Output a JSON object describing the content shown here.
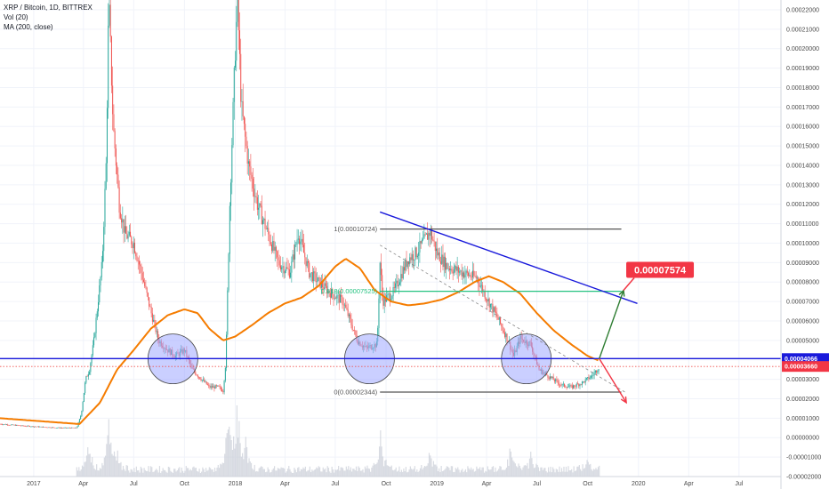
{
  "header": {
    "symbol_line": "XRP / Bitcoin, 1D, BITTREX",
    "indicator_1": "Vol (20)",
    "indicator_2": "MA (200, close)"
  },
  "colors": {
    "up": "#26a69a",
    "down": "#ef5350",
    "ma": "#f57c00",
    "trend_blue": "#1a1adb",
    "fib_grey": "#555555",
    "fib_green": "#26c281",
    "target_red": "#f23645",
    "arrow_green": "#2e7d32",
    "circle_fill": "#9fa8ff"
  },
  "chart_data": {
    "type": "candlestick",
    "title": "XRP / Bitcoin, 1D, BITTREX",
    "ylim": [
      -2e-05,
      0.000225
    ],
    "y_ticks": [
      "0.00022000",
      "0.00021000",
      "0.00020000",
      "0.00019000",
      "0.00018000",
      "0.00017000",
      "0.00016000",
      "0.00015000",
      "0.00014000",
      "0.00013000",
      "0.00012000",
      "0.00011000",
      "0.00010000",
      "0.00009000",
      "0.00008000",
      "0.00007000",
      "0.00006000",
      "0.00005000",
      "0.00004000",
      "0.00003000",
      "0.00002000",
      "0.00001000",
      "0.00000000",
      "-0.00001000",
      "-0.00002000"
    ],
    "x_ticks": [
      "2017",
      "Apr",
      "Jul",
      "Oct",
      "2018",
      "Apr",
      "Jul",
      "Oct",
      "2019",
      "Apr",
      "Jul",
      "Oct",
      "2020",
      "Apr",
      "Jul"
    ],
    "price_path": [
      [
        "2016-11-01",
        7e-06
      ],
      [
        "2016-12-15",
        6e-06
      ],
      [
        "2017-01-15",
        5.5e-06
      ],
      [
        "2017-02-20",
        5e-06
      ],
      [
        "2017-03-20",
        5e-06
      ],
      [
        "2017-03-28",
        1.2e-05
      ],
      [
        "2017-04-05",
        3e-05
      ],
      [
        "2017-04-12",
        3.5e-05
      ],
      [
        "2017-04-20",
        5e-05
      ],
      [
        "2017-05-05",
        9e-05
      ],
      [
        "2017-05-12",
        0.00014
      ],
      [
        "2017-05-17",
        0.000225
      ],
      [
        "2017-05-25",
        0.00016
      ],
      [
        "2017-06-05",
        0.00012
      ],
      [
        "2017-06-15",
        0.000105
      ],
      [
        "2017-07-01",
        0.0001
      ],
      [
        "2017-07-15",
        8.5e-05
      ],
      [
        "2017-08-01",
        6.5e-05
      ],
      [
        "2017-08-15",
        5e-05
      ],
      [
        "2017-09-01",
        4.5e-05
      ],
      [
        "2017-09-15",
        4.2e-05
      ],
      [
        "2017-10-01",
        4.5e-05
      ],
      [
        "2017-10-15",
        3.5e-05
      ],
      [
        "2017-11-01",
        3e-05
      ],
      [
        "2017-11-15",
        2.6e-05
      ],
      [
        "2017-12-01",
        2.6e-05
      ],
      [
        "2017-12-10",
        2.4e-05
      ],
      [
        "2017-12-15",
        4e-05
      ],
      [
        "2017-12-22",
        0.00012
      ],
      [
        "2018-01-01",
        0.0002
      ],
      [
        "2018-01-05",
        0.000225
      ],
      [
        "2018-01-12",
        0.00017
      ],
      [
        "2018-01-25",
        0.00014
      ],
      [
        "2018-02-10",
        0.00012
      ],
      [
        "2018-03-01",
        0.000105
      ],
      [
        "2018-03-20",
        9e-05
      ],
      [
        "2018-04-10",
        8.5e-05
      ],
      [
        "2018-04-25",
        0.000105
      ],
      [
        "2018-05-15",
        8.5e-05
      ],
      [
        "2018-06-01",
        8e-05
      ],
      [
        "2018-06-20",
        7.5e-05
      ],
      [
        "2018-07-15",
        7e-05
      ],
      [
        "2018-08-10",
        5e-05
      ],
      [
        "2018-08-25",
        4.6e-05
      ],
      [
        "2018-09-15",
        4.8e-05
      ],
      [
        "2018-09-20",
        9e-05
      ],
      [
        "2018-09-25",
        7e-05
      ],
      [
        "2018-10-15",
        7.5e-05
      ],
      [
        "2018-11-10",
        9.2e-05
      ],
      [
        "2018-11-25",
        9.5e-05
      ],
      [
        "2018-12-20",
        0.000106
      ],
      [
        "2019-01-01",
        9.5e-05
      ],
      [
        "2019-01-20",
        8.8e-05
      ],
      [
        "2019-02-15",
        8.5e-05
      ],
      [
        "2019-03-15",
        8.2e-05
      ],
      [
        "2019-04-01",
        7.2e-05
      ],
      [
        "2019-04-20",
        6.2e-05
      ],
      [
        "2019-05-10",
        5e-05
      ],
      [
        "2019-05-20",
        4.2e-05
      ],
      [
        "2019-06-01",
        5.1e-05
      ],
      [
        "2019-06-20",
        4.8e-05
      ],
      [
        "2019-07-05",
        3.5e-05
      ],
      [
        "2019-07-25",
        3.1e-05
      ],
      [
        "2019-08-15",
        2.7e-05
      ],
      [
        "2019-09-01",
        2.6e-05
      ],
      [
        "2019-09-20",
        2.8e-05
      ],
      [
        "2019-10-10",
        3.2e-05
      ],
      [
        "2019-10-22",
        3.66e-05
      ]
    ],
    "ma200_path": [
      [
        "2016-11-01",
        1e-05
      ],
      [
        "2017-03-25",
        7e-06
      ],
      [
        "2017-05-01",
        1.8e-05
      ],
      [
        "2017-06-01",
        3.5e-05
      ],
      [
        "2017-07-01",
        4.5e-05
      ],
      [
        "2017-08-01",
        5.6e-05
      ],
      [
        "2017-09-01",
        6.3e-05
      ],
      [
        "2017-10-01",
        6.6e-05
      ],
      [
        "2017-10-25",
        6.4e-05
      ],
      [
        "2017-11-15",
        5.6e-05
      ],
      [
        "2017-12-10",
        5e-05
      ],
      [
        "2018-01-01",
        5.2e-05
      ],
      [
        "2018-02-01",
        5.8e-05
      ],
      [
        "2018-03-01",
        6.4e-05
      ],
      [
        "2018-04-01",
        6.9e-05
      ],
      [
        "2018-05-01",
        7.2e-05
      ],
      [
        "2018-06-01",
        7.8e-05
      ],
      [
        "2018-07-01",
        8.8e-05
      ],
      [
        "2018-07-20",
        9.2e-05
      ],
      [
        "2018-08-15",
        8.7e-05
      ],
      [
        "2018-09-10",
        7.6e-05
      ],
      [
        "2018-10-10",
        7e-05
      ],
      [
        "2018-11-10",
        6.8e-05
      ],
      [
        "2018-12-10",
        6.9e-05
      ],
      [
        "2019-01-10",
        7.1e-05
      ],
      [
        "2019-02-10",
        7.5e-05
      ],
      [
        "2019-03-10",
        8e-05
      ],
      [
        "2019-04-05",
        8.3e-05
      ],
      [
        "2019-05-01",
        8e-05
      ],
      [
        "2019-06-01",
        7.4e-05
      ],
      [
        "2019-07-01",
        6.4e-05
      ],
      [
        "2019-08-01",
        5.5e-05
      ],
      [
        "2019-09-01",
        4.8e-05
      ],
      [
        "2019-10-01",
        4.2e-05
      ],
      [
        "2019-10-22",
        3.95e-05
      ]
    ],
    "volume_peaks": [
      [
        "2017-04-10",
        6
      ],
      [
        "2017-05-17",
        10
      ],
      [
        "2017-06-01",
        5
      ],
      [
        "2017-12-20",
        12
      ],
      [
        "2018-01-05",
        14
      ],
      [
        "2018-01-20",
        6
      ],
      [
        "2018-09-21",
        8
      ],
      [
        "2018-12-20",
        4
      ],
      [
        "2019-05-15",
        5
      ],
      [
        "2019-06-20",
        4
      ],
      [
        "2019-10-01",
        3
      ]
    ],
    "annotations": {
      "fib_1": {
        "label": "1(0.00010724)",
        "value": 0.00010724
      },
      "fib_0618": {
        "label": "0.618(0.00007525)",
        "value": 7.525e-05
      },
      "fib_0": {
        "label": "0(0.00002344)",
        "value": 2.344e-05
      },
      "target": {
        "label": "0.00007574",
        "value": 7.574e-05
      },
      "support_level": {
        "label": "0.00004066",
        "value": 4.066e-05
      },
      "last_price": {
        "label": "0.00003660",
        "value": 3.66e-05
      },
      "downtrend_line": [
        [
          "2018-09-20",
          0.000116
        ],
        [
          "2019-12-30",
          6.9e-05
        ]
      ],
      "dotted_trend": [
        [
          "2018-09-20",
          9.9e-05
        ],
        [
          "2019-12-10",
          2.3e-05
        ]
      ],
      "target_arrow": [
        [
          "2019-10-22",
          4.06e-05
        ],
        [
          "2019-12-05",
          7.57e-05
        ]
      ],
      "down_arrow": [
        [
          "2019-10-22",
          4.06e-05
        ],
        [
          "2019-12-10",
          1.8e-05
        ]
      ],
      "circles": [
        {
          "center": [
            "2017-09-10",
            4.05e-05
          ]
        },
        {
          "center": [
            "2018-09-01",
            4.05e-05
          ]
        },
        {
          "center": [
            "2019-06-12",
            4.05e-05
          ]
        }
      ]
    }
  }
}
